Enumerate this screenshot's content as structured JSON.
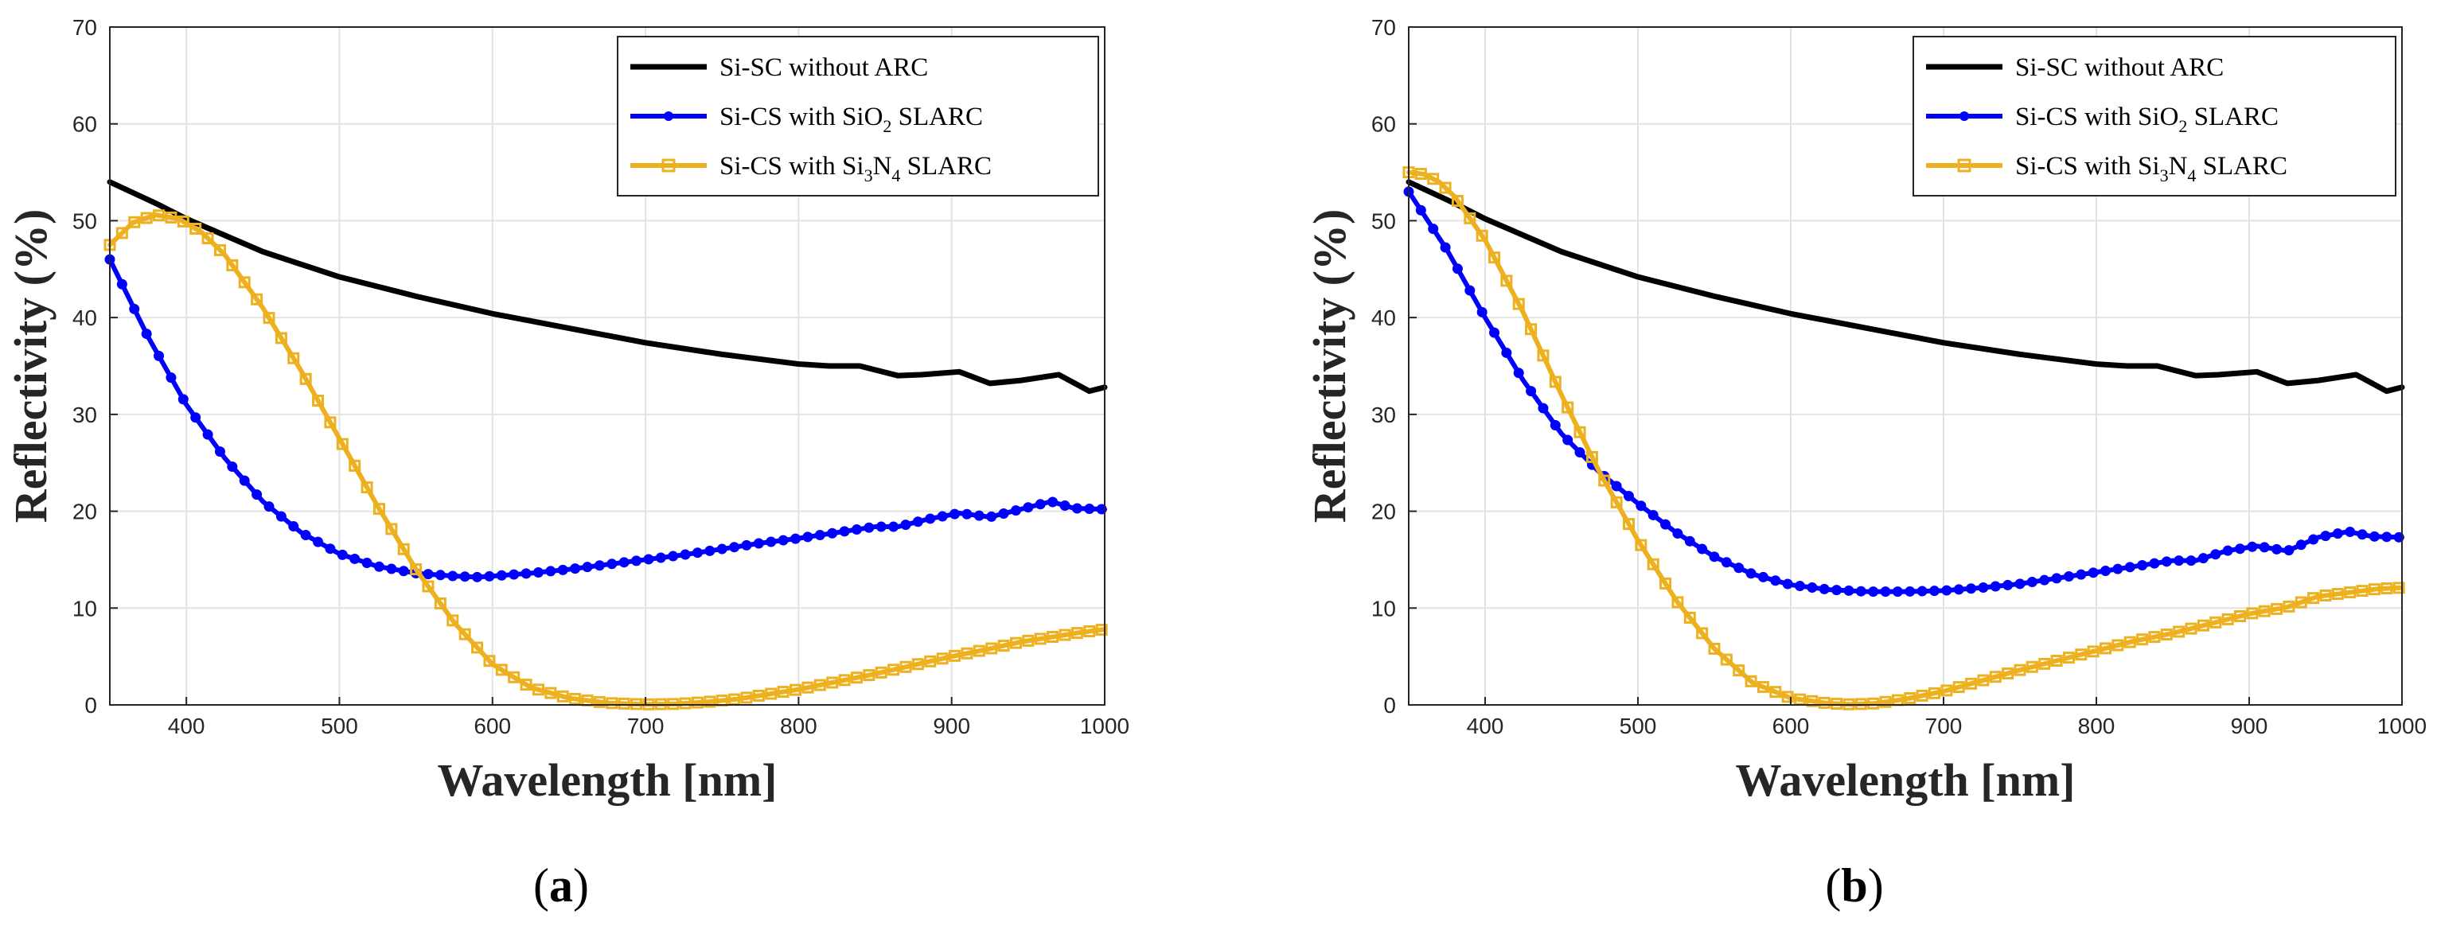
{
  "colors": {
    "without_arc": "#000000",
    "sio2": "#0000ff",
    "si3n4": "#edb120"
  },
  "chart_data": [
    {
      "type": "line",
      "panel_label": "a",
      "xlabel": "Wavelength [nm]",
      "ylabel": "Reflectivity (%)",
      "xlim": [
        350,
        1000
      ],
      "ylim": [
        0,
        70
      ],
      "xticks": [
        400,
        500,
        600,
        700,
        800,
        900,
        1000
      ],
      "yticks": [
        0,
        10,
        20,
        30,
        40,
        50,
        60,
        70
      ],
      "grid": true,
      "legend_position": "top-right",
      "series": [
        {
          "name": "Si-SC without ARC",
          "label_parts": [
            "Si-SC without ARC"
          ],
          "marker": "none",
          "color": "#000000",
          "x": [
            350,
            380,
            400,
            450,
            500,
            550,
            600,
            650,
            700,
            750,
            800,
            820,
            840,
            850,
            865,
            880,
            905,
            925,
            945,
            970,
            990,
            1000
          ],
          "y": [
            54,
            51.8,
            50.2,
            46.8,
            44.2,
            42.2,
            40.4,
            38.9,
            37.4,
            36.2,
            35.2,
            35,
            35,
            34.6,
            34,
            34.1,
            34.4,
            33.2,
            33.5,
            34.1,
            32.4,
            32.8
          ]
        },
        {
          "name": "Si-CS with SiO2 SLARC",
          "label_parts": [
            "Si-CS with SiO",
            "2",
            " SLARC"
          ],
          "marker": "circle",
          "color": "#0000ff",
          "x": [
            350,
            375,
            400,
            425,
            450,
            475,
            500,
            525,
            550,
            575,
            590,
            600,
            625,
            650,
            675,
            700,
            725,
            750,
            775,
            800,
            825,
            850,
            865,
            885,
            905,
            925,
            945,
            965,
            980,
            1000
          ],
          "y": [
            46,
            38,
            31,
            25.5,
            21,
            17.8,
            15.6,
            14.3,
            13.6,
            13.3,
            13.2,
            13.3,
            13.6,
            14,
            14.5,
            15,
            15.5,
            16.1,
            16.7,
            17.2,
            17.8,
            18.4,
            18.4,
            19.2,
            19.8,
            19.4,
            20.2,
            21,
            20.3,
            20.2
          ]
        },
        {
          "name": "Si-CS with Si3N4 SLARC",
          "label_parts": [
            "Si-CS with Si",
            "3",
            "N",
            "4",
            " SLARC"
          ],
          "marker": "square",
          "color": "#edb120",
          "x": [
            350,
            365,
            380,
            395,
            410,
            425,
            450,
            475,
            500,
            525,
            550,
            575,
            600,
            625,
            650,
            675,
            700,
            720,
            740,
            760,
            780,
            800,
            825,
            850,
            875,
            900,
            925,
            945,
            965,
            985,
            1000
          ],
          "y": [
            47.5,
            49.8,
            50.6,
            50.2,
            48.8,
            46.5,
            41,
            34.5,
            27.5,
            20.5,
            14,
            8.5,
            4.2,
            1.8,
            0.7,
            0.2,
            0.05,
            0.1,
            0.3,
            0.6,
            1.1,
            1.6,
            2.4,
            3.2,
            4.1,
            5,
            5.8,
            6.5,
            7,
            7.5,
            7.8
          ]
        }
      ]
    },
    {
      "type": "line",
      "panel_label": "b",
      "xlabel": "Wavelength [nm]",
      "ylabel": "Reflectivity (%)",
      "xlim": [
        350,
        1000
      ],
      "ylim": [
        0,
        70
      ],
      "xticks": [
        400,
        500,
        600,
        700,
        800,
        900,
        1000
      ],
      "yticks": [
        0,
        10,
        20,
        30,
        40,
        50,
        60,
        70
      ],
      "grid": true,
      "legend_position": "top-right",
      "series": [
        {
          "name": "Si-SC without ARC",
          "label_parts": [
            "Si-SC without ARC"
          ],
          "marker": "none",
          "color": "#000000",
          "x": [
            350,
            380,
            400,
            450,
            500,
            550,
            600,
            650,
            700,
            750,
            800,
            820,
            840,
            850,
            865,
            880,
            905,
            925,
            945,
            970,
            990,
            1000
          ],
          "y": [
            54,
            51.8,
            50.2,
            46.8,
            44.2,
            42.2,
            40.4,
            38.9,
            37.4,
            36.2,
            35.2,
            35,
            35,
            34.6,
            34,
            34.1,
            34.4,
            33.2,
            33.5,
            34.1,
            32.4,
            32.8
          ]
        },
        {
          "name": "Si-CS with SiO2 SLARC",
          "label_parts": [
            "Si-CS with SiO",
            "2",
            " SLARC"
          ],
          "marker": "circle",
          "color": "#0000ff",
          "x": [
            350,
            375,
            400,
            425,
            450,
            475,
            500,
            525,
            550,
            575,
            600,
            625,
            650,
            675,
            700,
            725,
            750,
            775,
            800,
            825,
            850,
            865,
            885,
            905,
            925,
            945,
            965,
            980,
            1000
          ],
          "y": [
            53,
            47,
            40,
            33.5,
            28,
            24,
            20.8,
            17.8,
            15.3,
            13.5,
            12.4,
            11.9,
            11.7,
            11.7,
            11.8,
            12.1,
            12.5,
            13.1,
            13.7,
            14.3,
            14.9,
            14.9,
            15.9,
            16.4,
            15.9,
            17.3,
            17.9,
            17.4,
            17.3
          ]
        },
        {
          "name": "Si-CS with Si3N4 SLARC",
          "label_parts": [
            "Si-CS with Si",
            "3",
            "N",
            "4",
            " SLARC"
          ],
          "marker": "square",
          "color": "#edb120",
          "x": [
            350,
            360,
            370,
            380,
            400,
            425,
            450,
            475,
            500,
            525,
            550,
            575,
            600,
            625,
            640,
            655,
            675,
            700,
            725,
            750,
            775,
            800,
            825,
            850,
            875,
            900,
            925,
            945,
            965,
            985,
            1000
          ],
          "y": [
            55,
            54.8,
            54,
            52.5,
            48,
            40.5,
            32,
            24,
            17,
            10.8,
            5.8,
            2.3,
            0.7,
            0.15,
            0.05,
            0.15,
            0.6,
            1.4,
            2.5,
            3.6,
            4.6,
            5.6,
            6.6,
            7.4,
            8.4,
            9.4,
            10.1,
            11.2,
            11.6,
            12,
            12.1
          ]
        }
      ]
    }
  ]
}
